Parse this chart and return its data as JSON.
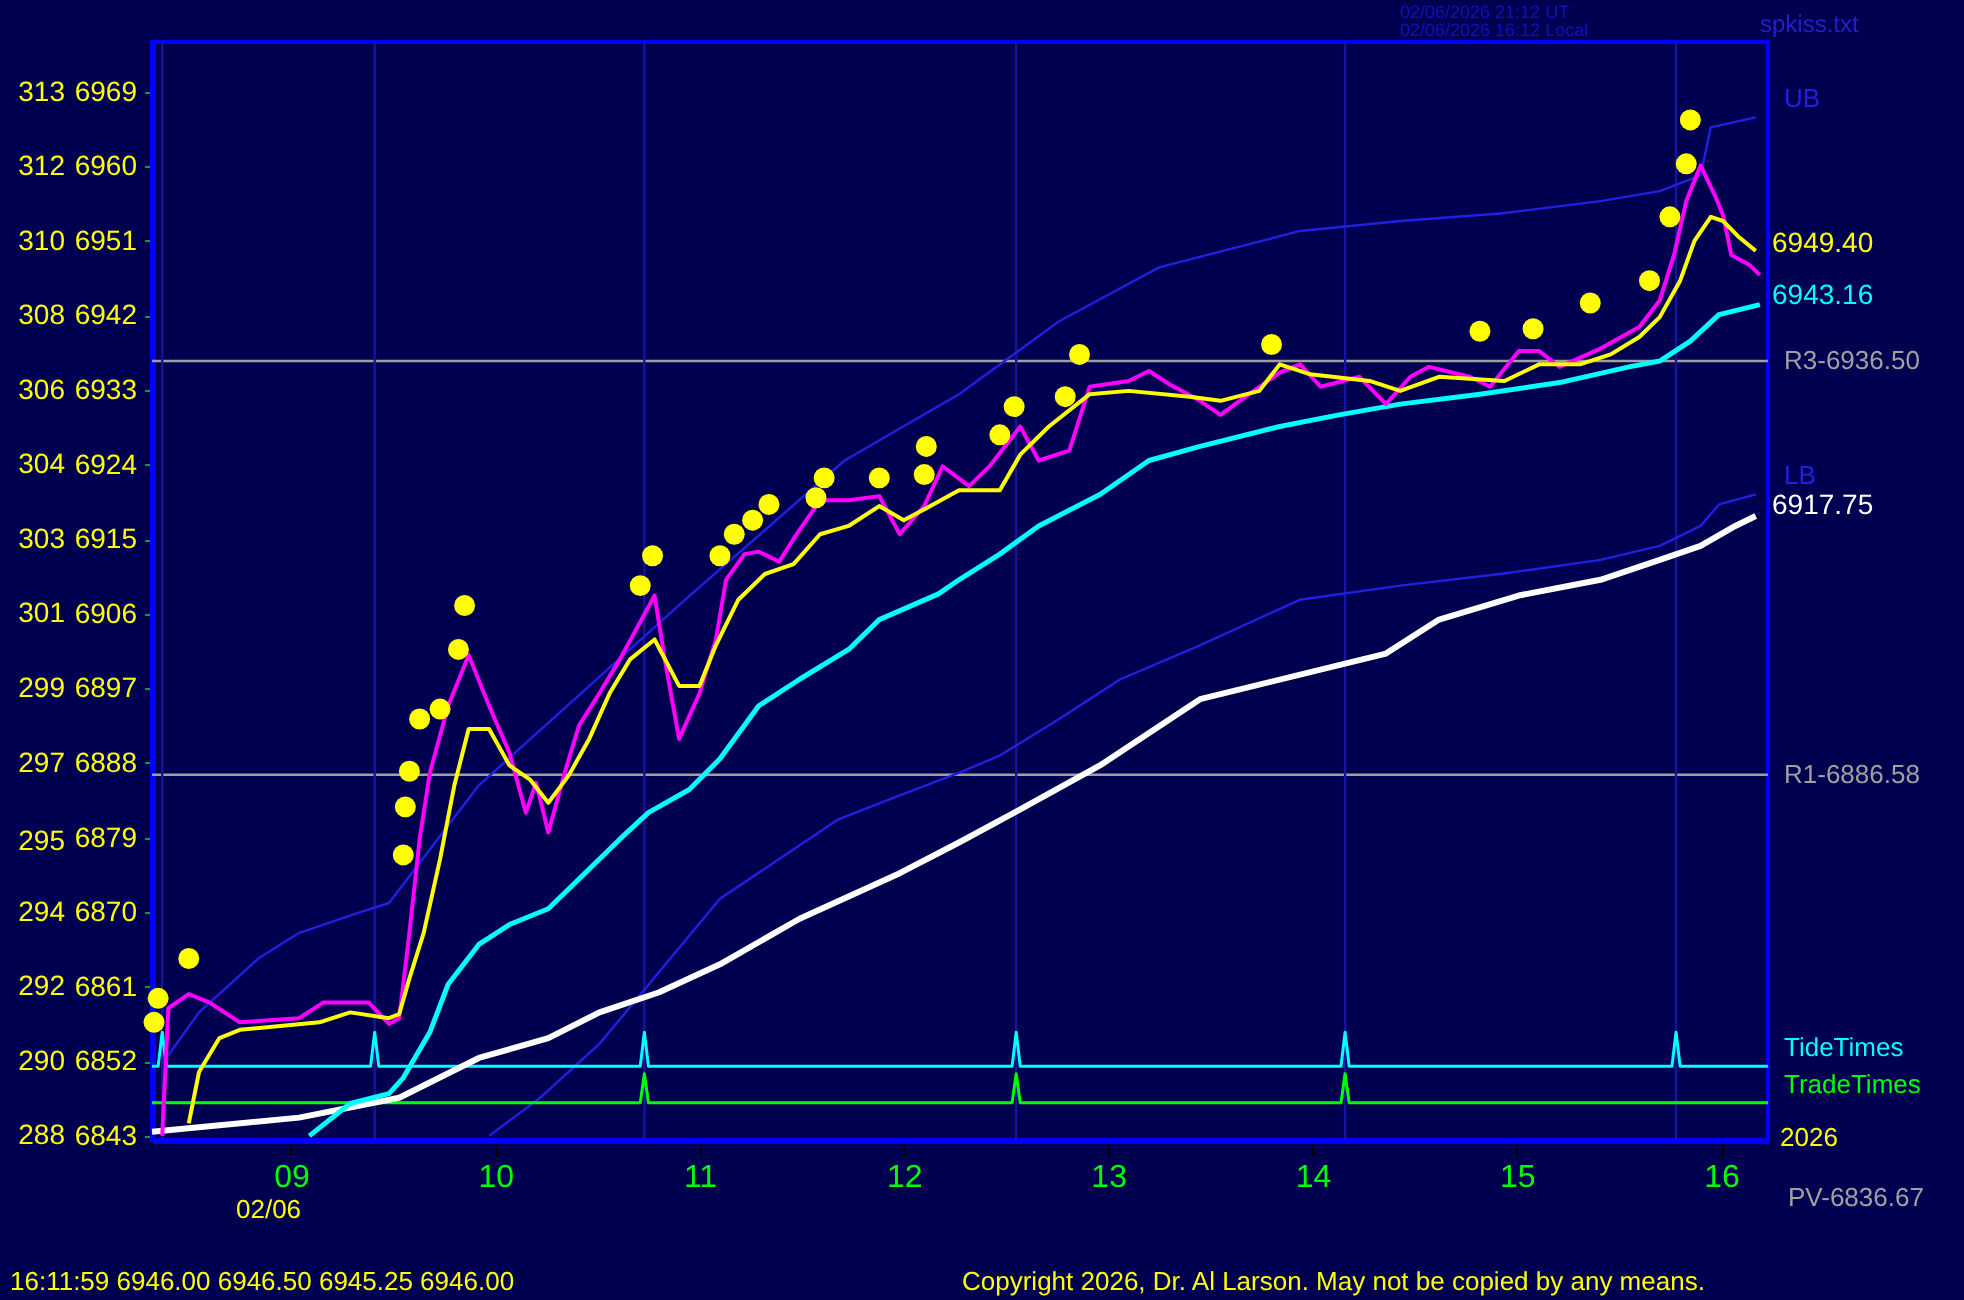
{
  "chart_data": {
    "type": "line",
    "xlim": [
      8.32,
      16.23
    ],
    "ylim": [
      6842.5,
      6975
    ],
    "xticks": [
      {
        "value": 9,
        "label": "09"
      },
      {
        "value": 10,
        "label": "10"
      },
      {
        "value": 11,
        "label": "11"
      },
      {
        "value": 12,
        "label": "12"
      },
      {
        "value": 13,
        "label": "13"
      },
      {
        "value": 14,
        "label": "14"
      },
      {
        "value": 15,
        "label": "15"
      },
      {
        "value": 16,
        "label": "16"
      }
    ],
    "yticks": [
      6969,
      6960,
      6951,
      6942,
      6933,
      6924,
      6915,
      6906,
      6897,
      6888,
      6879,
      6870,
      6861,
      6852,
      6843
    ],
    "y2lim": [
      288.3,
      314.59
    ],
    "y2ticks": [
      {
        "value": 313.4,
        "label": "313"
      },
      {
        "value": 311.62,
        "label": "312"
      },
      {
        "value": 309.83,
        "label": "310"
      },
      {
        "value": 308.05,
        "label": "308"
      },
      {
        "value": 306.26,
        "label": "306"
      },
      {
        "value": 304.48,
        "label": "304"
      },
      {
        "value": 302.69,
        "label": "303"
      },
      {
        "value": 300.91,
        "label": "301"
      },
      {
        "value": 299.12,
        "label": "299"
      },
      {
        "value": 297.33,
        "label": "297"
      },
      {
        "value": 295.45,
        "label": "295"
      },
      {
        "value": 293.76,
        "label": "294"
      },
      {
        "value": 291.98,
        "label": "292"
      },
      {
        "value": 290.19,
        "label": "290"
      },
      {
        "value": 288.41,
        "label": "288"
      }
    ],
    "grid": false,
    "line_style": "solid",
    "series": [
      {
        "name": "UB",
        "color": "#2020e0",
        "x": [
          8.37,
          8.55,
          8.84,
          9.04,
          9.33,
          9.48,
          9.92,
          10.93,
          11.71,
          12.27,
          12.76,
          13.25,
          13.94,
          14.43,
          14.92,
          15.41,
          15.7,
          15.9,
          15.95,
          16.17
        ],
        "values": [
          6851.7,
          6857.9,
          6864.4,
          6867.5,
          6869.9,
          6871.1,
          6885.3,
          6907.7,
          6924.5,
          6932.5,
          6941.3,
          6947.8,
          6952.2,
          6953.4,
          6954.3,
          6955.8,
          6957.0,
          6958.9,
          6964.7,
          6965.9
        ]
      },
      {
        "name": "LB",
        "color": "#2020e0",
        "x": [
          9.97,
          10.22,
          10.51,
          10.8,
          11.1,
          11.39,
          11.68,
          11.98,
          12.27,
          12.47,
          12.76,
          13.06,
          13.45,
          13.94,
          14.43,
          14.92,
          15.41,
          15.7,
          15.9,
          15.99,
          16.17
        ],
        "values": [
          6843.0,
          6847.6,
          6854.1,
          6862.7,
          6871.6,
          6876.4,
          6881.2,
          6884.1,
          6886.8,
          6888.9,
          6893.3,
          6898.1,
          6902.2,
          6907.7,
          6909.4,
          6910.8,
          6912.5,
          6914.2,
          6916.6,
          6919.2,
          6920.4
        ]
      },
      {
        "name": "TideTimes",
        "color": "#00ffff",
        "x": [
          8.32,
          8.35,
          8.37,
          8.39,
          9.39,
          9.41,
          9.43,
          10.71,
          10.73,
          10.75,
          12.53,
          12.55,
          12.57,
          14.14,
          14.16,
          14.18,
          15.76,
          15.78,
          15.8,
          16.23
        ],
        "values": [
          6851.4,
          6851.4,
          6855.5,
          6851.4,
          6851.4,
          6855.5,
          6851.4,
          6851.4,
          6855.5,
          6851.4,
          6851.4,
          6855.5,
          6851.4,
          6851.4,
          6855.5,
          6851.4,
          6851.4,
          6855.5,
          6851.4,
          6851.4
        ]
      },
      {
        "name": "TradeTimes",
        "color": "#00ff00",
        "x": [
          8.32,
          10.71,
          10.73,
          10.75,
          12.53,
          12.55,
          12.57,
          14.14,
          14.16,
          14.18,
          16.23
        ],
        "values": [
          6847.0,
          6847.0,
          6850.5,
          6847.0,
          6847.0,
          6850.5,
          6847.0,
          6847.0,
          6850.5,
          6847.0,
          6847.0
        ]
      },
      {
        "color": "#ffffff",
        "x": [
          8.32,
          9.04,
          9.53,
          9.92,
          10.26,
          10.51,
          10.8,
          11.1,
          11.49,
          11.98,
          12.27,
          12.57,
          12.96,
          13.45,
          14.36,
          14.62,
          15.01,
          15.41,
          15.7,
          15.9,
          16.07,
          16.17
        ],
        "values": [
          6843.5,
          6845.2,
          6847.6,
          6852.4,
          6854.8,
          6857.9,
          6860.3,
          6863.7,
          6869.2,
          6874.7,
          6878.4,
          6882.4,
          6887.7,
          6895.7,
          6901.2,
          6905.3,
          6908.2,
          6910.1,
          6912.5,
          6914.2,
          6916.6,
          6917.8
        ]
      },
      {
        "color": "#00ffff",
        "x": [
          9.09,
          9.29,
          9.48,
          9.55,
          9.68,
          9.77,
          9.92,
          10.07,
          10.26,
          10.41,
          10.61,
          10.75,
          10.95,
          11.1,
          11.29,
          11.49,
          11.73,
          11.88,
          12.17,
          12.27,
          12.47,
          12.66,
          12.96,
          13.2,
          13.45,
          13.84,
          14.13,
          14.43,
          14.82,
          15.21,
          15.55,
          15.7,
          15.85,
          15.99,
          16.19
        ],
        "values": [
          6843.0,
          6846.9,
          6848.1,
          6850.0,
          6855.5,
          6861.3,
          6866.1,
          6868.5,
          6870.4,
          6874.0,
          6878.8,
          6882.0,
          6884.8,
          6888.5,
          6894.9,
          6898.1,
          6901.7,
          6905.3,
          6908.4,
          6910.1,
          6913.2,
          6916.6,
          6920.4,
          6924.5,
          6926.2,
          6928.6,
          6930.0,
          6931.3,
          6932.5,
          6933.9,
          6935.8,
          6936.5,
          6938.9,
          6942.1,
          6943.3
        ]
      },
      {
        "color": "#ff00ff",
        "x": [
          8.37,
          8.4,
          8.5,
          8.6,
          8.75,
          9.04,
          9.16,
          9.38,
          9.48,
          9.53,
          9.58,
          9.63,
          9.68,
          9.77,
          9.87,
          9.97,
          10.07,
          10.15,
          10.2,
          10.26,
          10.34,
          10.41,
          10.51,
          10.61,
          10.69,
          10.78,
          10.83,
          10.9,
          11.0,
          11.08,
          11.13,
          11.22,
          11.29,
          11.39,
          11.47,
          11.59,
          11.73,
          11.88,
          11.98,
          12.1,
          12.19,
          12.32,
          12.42,
          12.57,
          12.66,
          12.81,
          12.91,
          13.1,
          13.2,
          13.3,
          13.45,
          13.55,
          13.69,
          13.84,
          13.94,
          14.04,
          14.23,
          14.36,
          14.48,
          14.57,
          14.77,
          14.87,
          15.01,
          15.11,
          15.21,
          15.41,
          15.6,
          15.7,
          15.77,
          15.83,
          15.9,
          15.97,
          16.01,
          16.05,
          16.14,
          16.19
        ],
        "values": [
          6843.0,
          6858.4,
          6860.1,
          6859.1,
          6856.7,
          6857.2,
          6859.1,
          6859.1,
          6856.5,
          6857.2,
          6867.5,
          6878.8,
          6886.8,
          6894.9,
          6901.0,
          6894.9,
          6889.2,
          6882.0,
          6885.6,
          6879.6,
          6886.8,
          6892.5,
          6896.4,
          6900.5,
          6904.1,
          6908.2,
          6900.5,
          6890.9,
          6896.4,
          6902.9,
          6910.1,
          6913.2,
          6913.5,
          6912.3,
          6915.4,
          6919.7,
          6919.7,
          6920.2,
          6915.6,
          6919.0,
          6923.8,
          6921.4,
          6923.8,
          6928.6,
          6924.5,
          6925.7,
          6933.4,
          6934.1,
          6935.3,
          6933.7,
          6931.7,
          6930.0,
          6932.5,
          6935.1,
          6936.1,
          6933.4,
          6934.6,
          6931.3,
          6934.6,
          6935.8,
          6934.6,
          6933.4,
          6937.7,
          6937.7,
          6935.8,
          6938.0,
          6940.6,
          6943.8,
          6949.3,
          6955.8,
          6960.1,
          6956.5,
          6954.1,
          6949.3,
          6948.1,
          6946.9
        ]
      },
      {
        "color": "#ffff00",
        "x": [
          8.5,
          8.55,
          8.65,
          8.75,
          9.14,
          9.29,
          9.48,
          9.53,
          9.58,
          9.65,
          9.73,
          9.8,
          9.87,
          9.97,
          10.07,
          10.17,
          10.26,
          10.36,
          10.46,
          10.56,
          10.66,
          10.78,
          10.9,
          11.0,
          11.08,
          11.19,
          11.32,
          11.46,
          11.59,
          11.73,
          11.88,
          12.0,
          12.13,
          12.27,
          12.47,
          12.57,
          12.71,
          12.91,
          13.1,
          13.4,
          13.55,
          13.74,
          13.84,
          13.99,
          14.28,
          14.43,
          14.62,
          14.94,
          15.11,
          15.31,
          15.46,
          15.6,
          15.7,
          15.8,
          15.87,
          15.95,
          16.01,
          16.09,
          16.17
        ],
        "values": [
          6844.5,
          6850.7,
          6854.8,
          6855.8,
          6856.7,
          6857.9,
          6857.2,
          6857.7,
          6862.0,
          6867.5,
          6876.4,
          6885.3,
          6892.1,
          6892.1,
          6887.7,
          6886.0,
          6883.2,
          6886.5,
          6890.9,
          6896.4,
          6900.5,
          6902.9,
          6897.3,
          6897.3,
          6902.2,
          6907.7,
          6910.8,
          6912.0,
          6915.6,
          6916.6,
          6919.0,
          6917.3,
          6919.0,
          6920.9,
          6920.9,
          6925.2,
          6928.6,
          6932.5,
          6932.9,
          6932.2,
          6931.7,
          6932.9,
          6936.1,
          6934.9,
          6934.1,
          6932.9,
          6934.6,
          6934.1,
          6936.1,
          6936.1,
          6937.3,
          6939.4,
          6941.8,
          6946.2,
          6951.0,
          6953.9,
          6953.4,
          6951.4,
          6949.8
        ]
      },
      {
        "type": "scatter",
        "marker": "circle",
        "color": "#ffff00",
        "x": [
          8.35,
          8.33,
          8.5,
          9.55,
          9.56,
          9.58,
          9.63,
          9.73,
          9.82,
          9.85,
          10.71,
          10.77,
          11.1,
          11.17,
          11.26,
          11.34,
          11.57,
          11.61,
          11.88,
          12.1,
          12.11,
          12.47,
          12.54,
          12.79,
          12.86,
          13.8,
          14.82,
          15.08,
          15.36,
          15.65,
          15.75,
          15.83,
          15.85
        ],
        "values": [
          6859.6,
          6856.7,
          6864.4,
          6876.9,
          6882.7,
          6887.0,
          6893.3,
          6894.5,
          6901.7,
          6907.0,
          6909.4,
          6913.0,
          6913.0,
          6915.6,
          6917.3,
          6919.2,
          6920.0,
          6922.4,
          6922.4,
          6922.8,
          6926.2,
          6927.6,
          6931.0,
          6932.2,
          6937.3,
          6938.5,
          6940.1,
          6940.4,
          6943.5,
          6946.2,
          6953.9,
          6960.3,
          6965.6
        ]
      }
    ],
    "ref_lines": [
      {
        "axis": "y",
        "value": 6936.5,
        "label": "R3-6936.50",
        "color": "#a0a0a0"
      },
      {
        "axis": "y",
        "value": 6886.58,
        "label": "R1-6886.58",
        "color": "#a0a0a0"
      },
      {
        "axis": "x",
        "value": 8.37,
        "color": "#1414a0"
      },
      {
        "axis": "x",
        "value": 9.41,
        "color": "#1414a0"
      },
      {
        "axis": "x",
        "value": 10.73,
        "color": "#1414a0"
      },
      {
        "axis": "x",
        "value": 12.55,
        "color": "#1414a0"
      },
      {
        "axis": "x",
        "value": 14.16,
        "color": "#1414a0"
      },
      {
        "axis": "x",
        "value": 15.78,
        "color": "#1414a0"
      }
    ],
    "annotations": [
      "6949.40",
      "6943.16",
      "6917.75",
      "02/06/2026 21:12 UT",
      "02/06/2026 16:12 Local",
      "spkiss.txt",
      "02/06",
      "2026",
      "PV-6836.67",
      "16:11:59  6946.00 6946.50 6945.25 6946.00",
      "Copyright 2026, Dr. Al Larson. May not be copied by any means."
    ]
  }
}
